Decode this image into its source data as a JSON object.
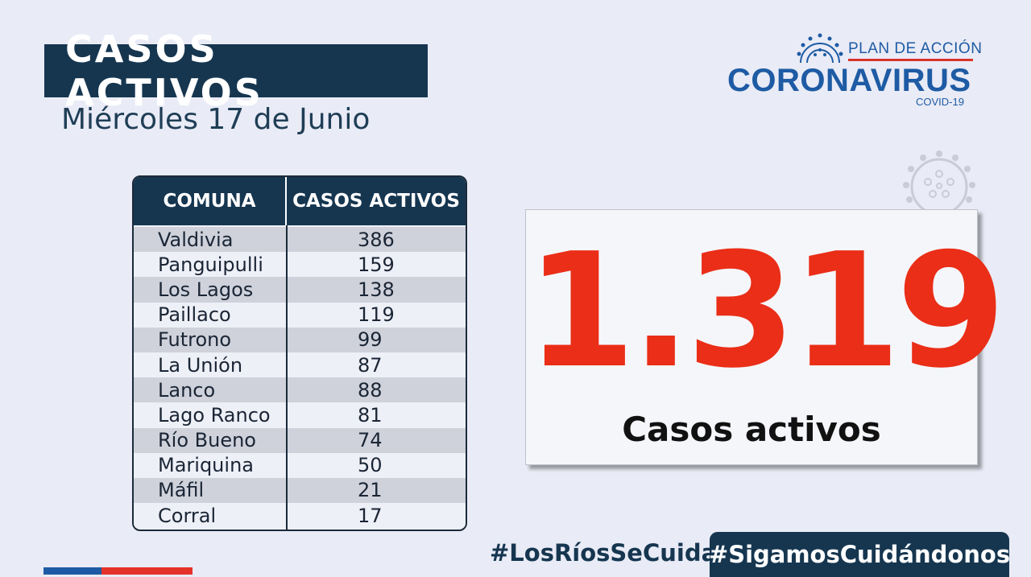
{
  "header": {
    "title": "CASOS ACTIVOS",
    "date": "Miércoles 17 de Junio"
  },
  "logo": {
    "plan": "PLAN DE ACCIÓN",
    "main": "CORONAVIRUS",
    "sub": "COVID-19",
    "icon": "virus-icon"
  },
  "table": {
    "headers": [
      "COMUNA",
      "CASOS ACTIVOS"
    ],
    "rows": [
      [
        "Valdivia",
        "386"
      ],
      [
        "Panguipulli",
        "159"
      ],
      [
        "Los Lagos",
        "138"
      ],
      [
        "Paillaco",
        "119"
      ],
      [
        "Futrono",
        "99"
      ],
      [
        "La Unión",
        "87"
      ],
      [
        "Lanco",
        "88"
      ],
      [
        "Lago Ranco",
        "81"
      ],
      [
        "Río Bueno",
        "74"
      ],
      [
        "Mariquina",
        "50"
      ],
      [
        "Máfil",
        "21"
      ],
      [
        "Corral",
        "17"
      ]
    ]
  },
  "summary": {
    "total": "1.319",
    "label": "Casos activos"
  },
  "hashtags": {
    "first": "#LosRíosSeCuida",
    "second": "#SigamosCuidándonos"
  },
  "colors": {
    "navy": "#163650",
    "accent_red": "#ea2e17",
    "brand_blue": "#1e5ba4",
    "background": "#e9ebf6"
  }
}
